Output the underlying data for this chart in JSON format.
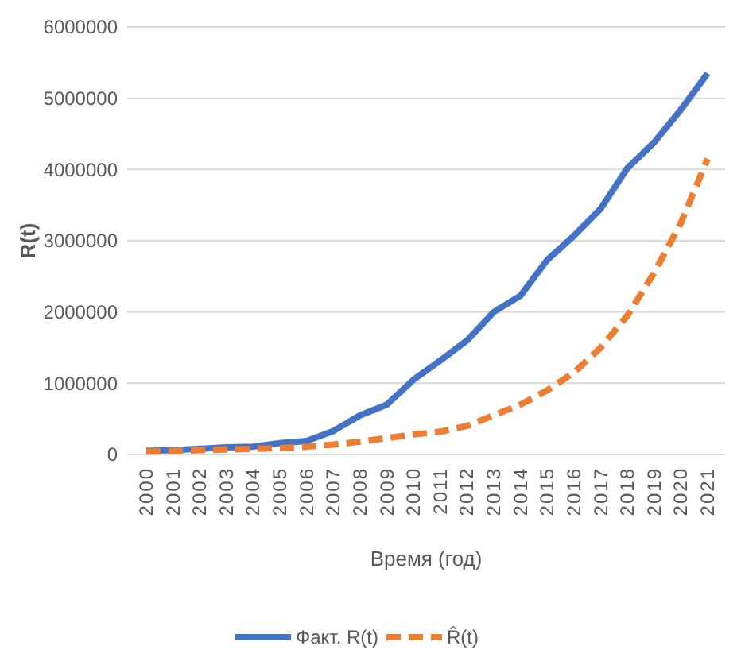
{
  "chart_data": {
    "type": "line",
    "xlabel": "Время (год)",
    "ylabel": "R(t)",
    "categories": [
      "2000",
      "2001",
      "2002",
      "2003",
      "2004",
      "2005",
      "2006",
      "2007",
      "2008",
      "2009",
      "2010",
      "2011",
      "2012",
      "2013",
      "2014",
      "2015",
      "2016",
      "2017",
      "2018",
      "2019",
      "2020",
      "2021"
    ],
    "series": [
      {
        "name": "Факт. R(t)",
        "color": "#4472c4",
        "line_style": "solid",
        "values": [
          50000,
          60000,
          80000,
          100000,
          110000,
          160000,
          190000,
          330000,
          550000,
          700000,
          1050000,
          1320000,
          1600000,
          2000000,
          2230000,
          2730000,
          3070000,
          3450000,
          4020000,
          4380000,
          4840000,
          5350000
        ]
      },
      {
        "name": "R̂(t)",
        "color": "#ed7d31",
        "line_style": "dashed",
        "values": [
          40000,
          50000,
          60000,
          70000,
          80000,
          90000,
          110000,
          140000,
          180000,
          230000,
          280000,
          320000,
          400000,
          550000,
          700000,
          900000,
          1150000,
          1500000,
          1950000,
          2550000,
          3250000,
          4150000
        ]
      }
    ],
    "ylim": [
      0,
      6000000
    ],
    "yticks": [
      0,
      1000000,
      2000000,
      3000000,
      4000000,
      5000000,
      6000000
    ],
    "grid": "y",
    "legend": "bottom",
    "marker": "none"
  }
}
